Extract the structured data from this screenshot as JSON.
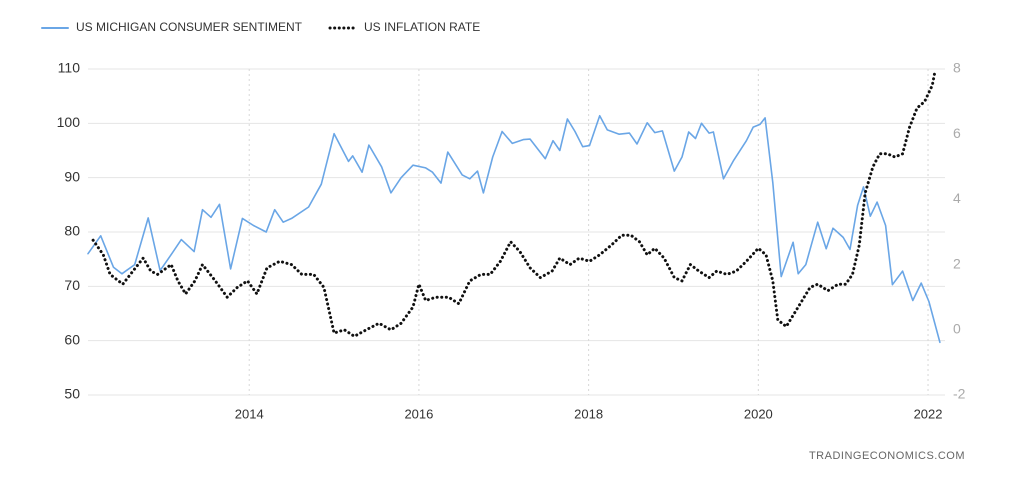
{
  "chart_data": {
    "type": "line",
    "legend": "top-left",
    "grid": true,
    "xlim": [
      2012.1,
      2022.2
    ],
    "xticks": [
      2014,
      2016,
      2018,
      2020,
      2022
    ],
    "ylim": [
      50,
      110
    ],
    "yticks": [
      50,
      60,
      70,
      80,
      90,
      100,
      110
    ],
    "y2lim": [
      -2,
      8
    ],
    "y2ticks": [
      -2,
      0,
      2,
      4,
      6,
      8
    ],
    "source": "TRADINGECONOMICS.COM",
    "series": [
      {
        "name": "US MICHIGAN CONSUMER SENTIMENT",
        "color": "#6aa6e6",
        "style": "solid",
        "x": [
          2012.1,
          2012.25,
          2012.4,
          2012.5,
          2012.65,
          2012.81,
          2012.95,
          2013.1,
          2013.2,
          2013.35,
          2013.45,
          2013.55,
          2013.65,
          2013.78,
          2013.92,
          2014.05,
          2014.2,
          2014.3,
          2014.4,
          2014.5,
          2014.7,
          2014.85,
          2015.0,
          2015.17,
          2015.22,
          2015.33,
          2015.41,
          2015.56,
          2015.67,
          2015.79,
          2015.93,
          2016.08,
          2016.16,
          2016.26,
          2016.34,
          2016.51,
          2016.6,
          2016.69,
          2016.76,
          2016.87,
          2016.98,
          2017.1,
          2017.23,
          2017.31,
          2017.49,
          2017.58,
          2017.66,
          2017.75,
          2017.84,
          2017.93,
          2018.01,
          2018.13,
          2018.22,
          2018.36,
          2018.48,
          2018.57,
          2018.69,
          2018.78,
          2018.87,
          2019.01,
          2019.1,
          2019.18,
          2019.26,
          2019.33,
          2019.42,
          2019.47,
          2019.59,
          2019.71,
          2019.86,
          2019.94,
          2020.02,
          2020.08,
          2020.17,
          2020.27,
          2020.41,
          2020.47,
          2020.56,
          2020.7,
          2020.8,
          2020.88,
          2021.0,
          2021.08,
          2021.17,
          2021.24,
          2021.32,
          2021.4,
          2021.5,
          2021.58,
          2021.7,
          2021.82,
          2021.92,
          2022.01,
          2022.14
        ],
        "values": [
          76,
          79.3,
          73.5,
          72.3,
          74,
          82.6,
          72.9,
          76.3,
          78.6,
          76.4,
          84.1,
          82.7,
          85.1,
          73.2,
          82.5,
          81.2,
          80,
          84.1,
          81.8,
          82.5,
          84.6,
          88.8,
          98.1,
          93,
          94,
          91,
          96,
          92,
          87.2,
          90,
          92.3,
          91.8,
          91,
          89,
          94.7,
          90.5,
          89.8,
          91.2,
          87.2,
          93.8,
          98.5,
          96.3,
          97,
          97.1,
          93.5,
          96.8,
          95,
          100.8,
          98.5,
          95.7,
          95.9,
          101.4,
          98.8,
          98,
          98.2,
          96.2,
          100.1,
          98.3,
          98.6,
          91.2,
          93.8,
          98.4,
          97.2,
          100,
          98.2,
          98.4,
          89.8,
          93.2,
          96.8,
          99.3,
          99.8,
          101,
          89.1,
          71.8,
          78.1,
          72.3,
          74,
          81.8,
          76.9,
          80.7,
          79,
          76.8,
          84.9,
          88.3,
          82.9,
          85.5,
          81.2,
          70.3,
          72.8,
          67.4,
          70.6,
          67.2,
          59.7
        ]
      },
      {
        "name": "US INFLATION RATE",
        "color": "#111111",
        "style": "dotted",
        "axis": "y2",
        "x": [
          2012.16,
          2012.28,
          2012.36,
          2012.51,
          2012.6,
          2012.75,
          2012.84,
          2012.92,
          2013.08,
          2013.16,
          2013.25,
          2013.36,
          2013.45,
          2013.6,
          2013.74,
          2013.86,
          2013.98,
          2014.09,
          2014.21,
          2014.36,
          2014.5,
          2014.62,
          2014.76,
          2014.88,
          2015.0,
          2015.12,
          2015.24,
          2015.38,
          2015.53,
          2015.67,
          2015.79,
          2015.93,
          2016.0,
          2016.08,
          2016.2,
          2016.35,
          2016.47,
          2016.6,
          2016.73,
          2016.84,
          2016.96,
          2017.08,
          2017.19,
          2017.31,
          2017.43,
          2017.57,
          2017.66,
          2017.78,
          2017.89,
          2018.01,
          2018.13,
          2018.27,
          2018.39,
          2018.5,
          2018.6,
          2018.69,
          2018.78,
          2018.89,
          2019.01,
          2019.1,
          2019.2,
          2019.3,
          2019.42,
          2019.51,
          2019.63,
          2019.74,
          2019.86,
          2020.0,
          2020.09,
          2020.17,
          2020.23,
          2020.33,
          2020.47,
          2020.61,
          2020.7,
          2020.82,
          2020.94,
          2021.03,
          2021.11,
          2021.19,
          2021.26,
          2021.35,
          2021.43,
          2021.52,
          2021.61,
          2021.7,
          2021.78,
          2021.87,
          2021.96,
          2022.05,
          2022.08
        ],
        "values": [
          2.75,
          2.3,
          1.7,
          1.4,
          1.7,
          2.2,
          1.8,
          1.7,
          2,
          1.5,
          1.1,
          1.5,
          2,
          1.5,
          1,
          1.3,
          1.5,
          1.1,
          1.9,
          2.1,
          2,
          1.7,
          1.7,
          1.3,
          -0.1,
          0,
          -0.2,
          0,
          0.2,
          0,
          0.2,
          0.7,
          1.4,
          0.9,
          1,
          1,
          0.8,
          1.5,
          1.7,
          1.7,
          2.1,
          2.7,
          2.4,
          1.9,
          1.6,
          1.8,
          2.2,
          2,
          2.2,
          2.1,
          2.3,
          2.6,
          2.9,
          2.9,
          2.7,
          2.3,
          2.5,
          2.2,
          1.6,
          1.5,
          2,
          1.8,
          1.6,
          1.8,
          1.7,
          1.8,
          2.1,
          2.5,
          2.3,
          1.5,
          0.3,
          0.1,
          0.7,
          1.3,
          1.4,
          1.2,
          1.4,
          1.4,
          1.7,
          2.6,
          4.2,
          5,
          5.4,
          5.4,
          5.3,
          5.4,
          6.2,
          6.8,
          7,
          7.5,
          7.9
        ]
      }
    ]
  }
}
